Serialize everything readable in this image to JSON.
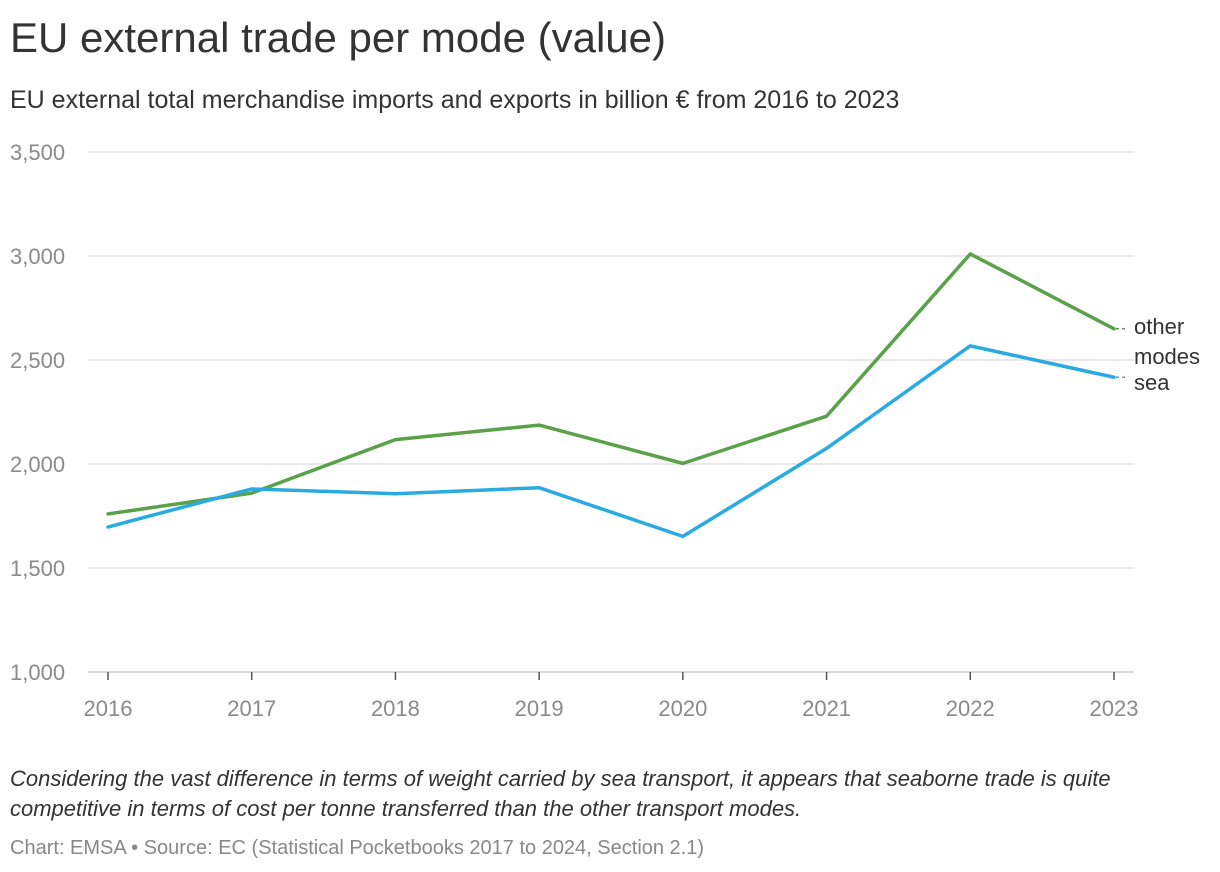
{
  "chart_data": {
    "type": "line",
    "title": "EU external trade per mode (value)",
    "subtitle": "EU external total merchandise imports and exports in billion € from 2016 to 2023",
    "categories": [
      "2016",
      "2017",
      "2018",
      "2019",
      "2020",
      "2021",
      "2022",
      "2023"
    ],
    "series": [
      {
        "name": "other modes",
        "label_lines": [
          "other",
          "modes"
        ],
        "color": "#5aa14a",
        "values": [
          1760,
          1860,
          2117,
          2187,
          2003,
          2230,
          3010,
          2650
        ]
      },
      {
        "name": "sea",
        "label_lines": [
          "sea"
        ],
        "color": "#29abe2",
        "values": [
          1697,
          1880,
          1857,
          1886,
          1652,
          2075,
          2568,
          2417
        ]
      }
    ],
    "y_ticks": [
      "1,000",
      "1,500",
      "2,000",
      "2,500",
      "3,000",
      "3,500"
    ],
    "y_tick_values": [
      1000,
      1500,
      2000,
      2500,
      3000,
      3500
    ],
    "ylim": [
      1000,
      3500
    ],
    "xlabel": "",
    "ylabel": "",
    "grid": true,
    "legend": "inline-right"
  },
  "note": "Considering the vast difference in terms of weight carried by sea transport, it appears that seaborne trade is quite competitive in terms of cost per tonne transferred than the other transport modes.",
  "source": "Chart: EMSA • Source: EC (Statistical Pocketbooks 2017 to 2024, Section 2.1)",
  "colors": {
    "grid": "#e0e0e0",
    "axis_text": "#8a8a8a",
    "other_modes": "#5aa14a",
    "sea": "#29abe2"
  }
}
